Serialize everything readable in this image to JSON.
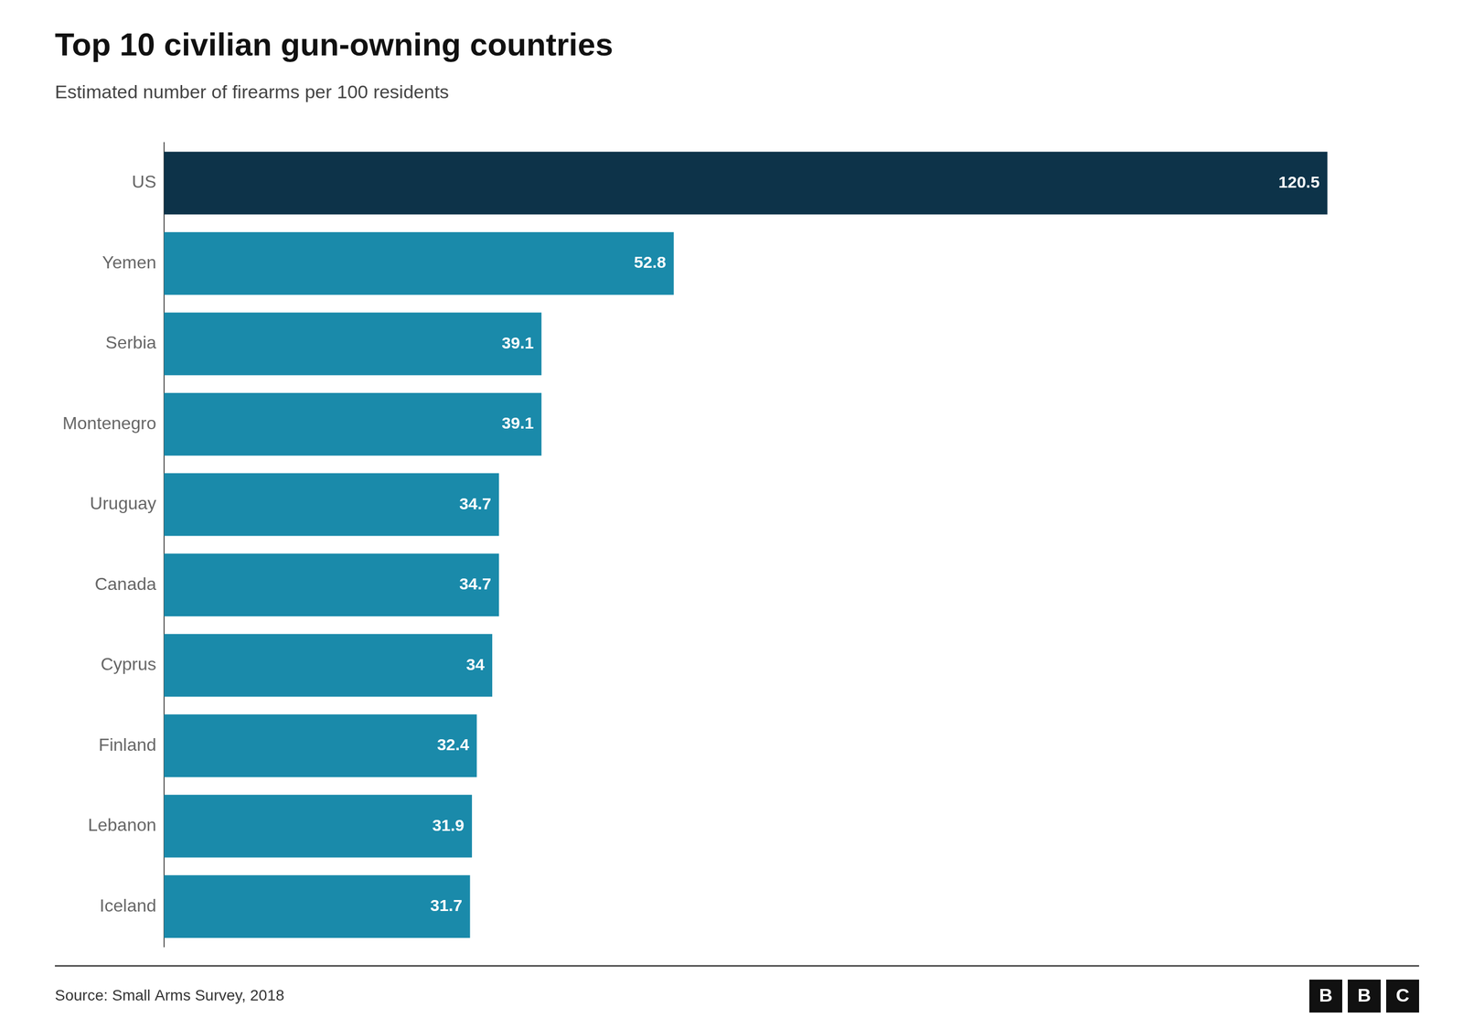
{
  "chart_data": {
    "type": "bar",
    "orientation": "horizontal",
    "title": "Top 10 civilian gun-owning countries",
    "subtitle": "Estimated number of firearms per 100 residents",
    "annotations": [
      "Source: Small Arms Survey, 2018",
      "BBC"
    ],
    "categories": [
      "US",
      "Yemen",
      "Serbia",
      "Montenegro",
      "Uruguay",
      "Canada",
      "Cyprus",
      "Finland",
      "Lebanon",
      "Iceland"
    ],
    "values": [
      120.5,
      52.8,
      39.1,
      39.1,
      34.7,
      34.7,
      34.0,
      32.4,
      31.9,
      31.7
    ],
    "colors": [
      "#0d3349",
      "#1a8aaa",
      "#1a8aaa",
      "#1a8aaa",
      "#1a8aaa",
      "#1a8aaa",
      "#1a8aaa",
      "#1a8aaa",
      "#1a8aaa",
      "#1a8aaa"
    ],
    "xlim": [
      0,
      130
    ],
    "grid": false,
    "data_labels": true,
    "tick_labels": "y"
  }
}
